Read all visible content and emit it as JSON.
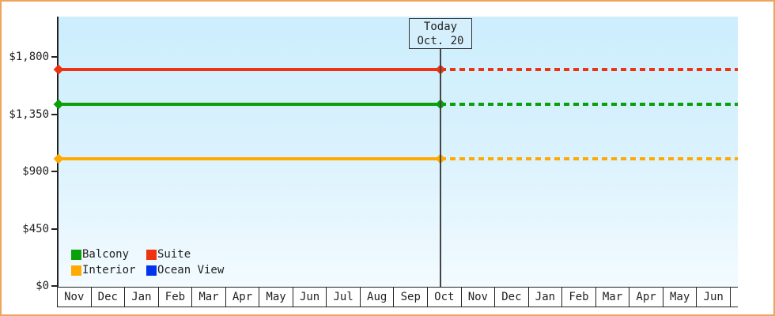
{
  "colors": {
    "frame_border": "#eda55e",
    "plot_bg_top": "#cdeefd",
    "plot_bg_bottom": "#f3fbff",
    "axis": "#222222",
    "text": "#222222",
    "today_line": "#444444",
    "today_box_bg": "#d5f0fc",
    "today_box_border": "#333333"
  },
  "chart_data": {
    "type": "line",
    "title": "",
    "description": "Cruise cabin price history/forecast: flat price lines per cabin category, solid before today and dotted after today",
    "x_categories": [
      "Nov",
      "Dec",
      "Jan",
      "Feb",
      "Mar",
      "Apr",
      "May",
      "Jun",
      "Jul",
      "Aug",
      "Sep",
      "Oct",
      "Nov",
      "Dec",
      "Jan",
      "Feb",
      "Mar",
      "Apr",
      "May",
      "Jun"
    ],
    "y_axis": {
      "range": [
        0,
        1800
      ],
      "ticks": [
        {
          "label": "$0",
          "value": 0
        },
        {
          "label": "$450",
          "value": 450
        },
        {
          "label": "$900",
          "value": 900
        },
        {
          "label": "$1,350",
          "value": 1350
        },
        {
          "label": "$1,800",
          "value": 1800
        }
      ]
    },
    "series": [
      {
        "name": "Balcony",
        "color": "#0aa00a",
        "value": 1425,
        "line": "solid-then-dotted"
      },
      {
        "name": "Suite",
        "color": "#ee3311",
        "value": 1700,
        "line": "solid-then-dotted"
      },
      {
        "name": "Interior",
        "color": "#ffaa00",
        "value": 1000,
        "line": "solid-then-dotted"
      },
      {
        "name": "Ocean View",
        "color": "#0033ee",
        "value": null,
        "line": "none"
      }
    ],
    "annotation": {
      "line1": "Today",
      "line2": "Oct. 20",
      "month_index": 11,
      "day": 20
    },
    "legend_position": "bottom-left",
    "grid": false
  }
}
